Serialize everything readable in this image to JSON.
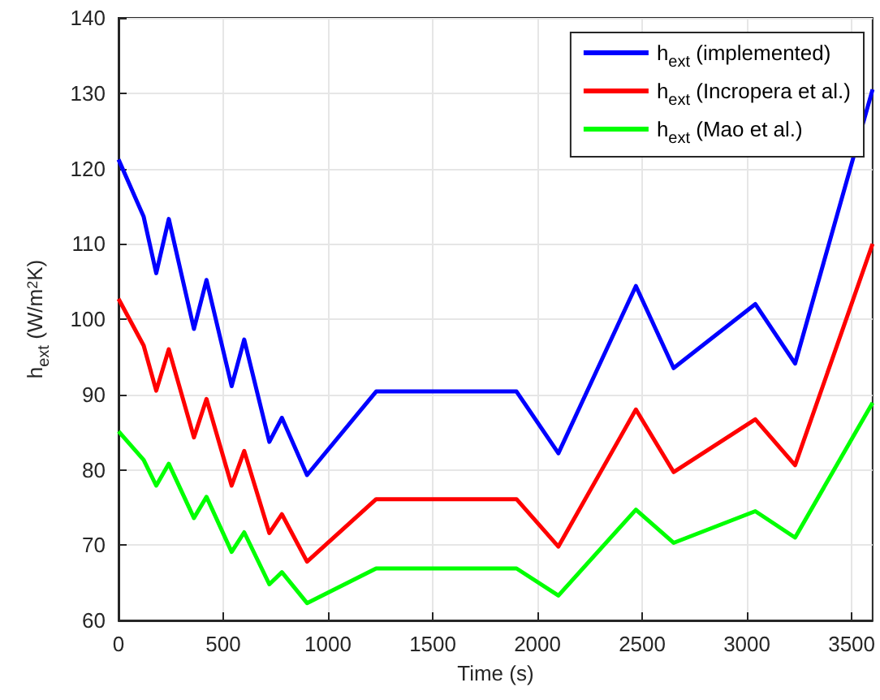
{
  "chart_data": {
    "type": "line",
    "xlabel": "Time (s)",
    "ylabel": "h$_{ext}$ (W/m$^{2}$K)",
    "x": [
      0,
      120,
      180,
      240,
      360,
      420,
      540,
      600,
      720,
      780,
      900,
      1230,
      1900,
      2100,
      2470,
      2650,
      3040,
      3230,
      3600
    ],
    "series": [
      {
        "name": "h$_{ext}$ (implemented)",
        "color": "#0000ff",
        "values": [
          121.2,
          113.6,
          106.1,
          113.3,
          98.7,
          105.2,
          91.1,
          97.3,
          83.7,
          86.9,
          79.3,
          90.4,
          90.4,
          82.2,
          104.4,
          93.5,
          102,
          94.1,
          130.5
        ]
      },
      {
        "name": "h$_{ext}$ (Incropera et al.)",
        "color": "#ff0000",
        "values": [
          102.7,
          96.5,
          90.5,
          96,
          84.3,
          89.4,
          77.9,
          82.5,
          71.6,
          74.1,
          67.8,
          76.1,
          76.1,
          69.8,
          88,
          79.7,
          86.7,
          80.6,
          110
        ]
      },
      {
        "name": "h$_{ext}$ (Mao et al.)",
        "color": "#00ff00",
        "values": [
          85.1,
          81.3,
          77.9,
          80.8,
          73.6,
          76.4,
          69.1,
          71.7,
          64.8,
          66.4,
          62.3,
          66.9,
          66.9,
          63.3,
          74.7,
          70.3,
          74.5,
          71,
          88.9
        ]
      }
    ],
    "xlim": [
      0,
      3600
    ],
    "xticks": [
      0,
      500,
      1000,
      1500,
      2000,
      2500,
      3000,
      3500
    ],
    "ylim": [
      60,
      140
    ],
    "yticks": [
      60,
      70,
      80,
      90,
      100,
      110,
      120,
      130,
      140
    ],
    "grid": true,
    "legend": "top right",
    "marker": "none",
    "line_style": "solid"
  }
}
